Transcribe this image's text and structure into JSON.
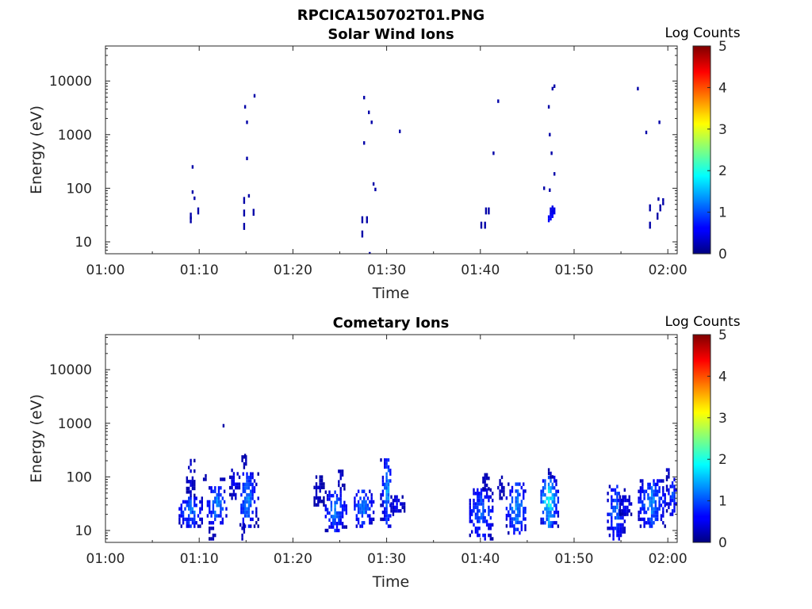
{
  "figure_title": "RPCICA150702T01.PNG",
  "chart_data": [
    {
      "type": "heatmap",
      "title": "Solar Wind Ions",
      "xlabel": "Time",
      "ylabel": "Energy (eV)",
      "x_ticks": [
        "01:00",
        "01:10",
        "01:20",
        "01:30",
        "01:40",
        "01:50",
        "02:00"
      ],
      "x_range_minutes": [
        60,
        121
      ],
      "y_scale": "log",
      "y_ticks": [
        "10",
        "100",
        "1000",
        "10000"
      ],
      "y_range": [
        6,
        45000
      ],
      "colorbar": {
        "label": "Log Counts",
        "ticks": [
          "0",
          "1",
          "2",
          "3",
          "4",
          "5"
        ],
        "range": [
          0,
          5
        ]
      },
      "cells": [
        {
          "t": 69.0,
          "e": 28,
          "v": 0.2
        },
        {
          "t": 69.0,
          "e": 24,
          "v": 0.2
        },
        {
          "t": 69.2,
          "e": 250,
          "v": 0.2
        },
        {
          "t": 69.2,
          "e": 85,
          "v": 0.2
        },
        {
          "t": 69.4,
          "e": 65,
          "v": 0.2
        },
        {
          "t": 69.8,
          "e": 35,
          "v": 0.2
        },
        {
          "t": 74.8,
          "e": 3300,
          "v": 0.2
        },
        {
          "t": 75.0,
          "e": 1700,
          "v": 0.2
        },
        {
          "t": 75.0,
          "e": 360,
          "v": 0.2
        },
        {
          "t": 74.7,
          "e": 55,
          "v": 0.2
        },
        {
          "t": 74.7,
          "e": 32,
          "v": 0.2
        },
        {
          "t": 74.7,
          "e": 18,
          "v": 0.2
        },
        {
          "t": 75.2,
          "e": 72,
          "v": 0.2
        },
        {
          "t": 75.7,
          "e": 33,
          "v": 0.2
        },
        {
          "t": 75.8,
          "e": 5300,
          "v": 0.2
        },
        {
          "t": 77.5,
          "e": 0,
          "v": 0
        },
        {
          "t": 87.5,
          "e": 4900,
          "v": 0.2
        },
        {
          "t": 87.5,
          "e": 700,
          "v": 0.2
        },
        {
          "t": 88.0,
          "e": 2600,
          "v": 0.2
        },
        {
          "t": 88.3,
          "e": 1700,
          "v": 0.2
        },
        {
          "t": 88.5,
          "e": 120,
          "v": 0.2
        },
        {
          "t": 88.7,
          "e": 95,
          "v": 0.2
        },
        {
          "t": 87.3,
          "e": 24,
          "v": 0.2
        },
        {
          "t": 87.3,
          "e": 13,
          "v": 0.2
        },
        {
          "t": 87.8,
          "e": 24,
          "v": 0.2
        },
        {
          "t": 88.1,
          "e": 6,
          "v": 0.2
        },
        {
          "t": 91.3,
          "e": 1150,
          "v": 0.2
        },
        {
          "t": 100.0,
          "e": 19,
          "v": 0.2
        },
        {
          "t": 100.4,
          "e": 19,
          "v": 0.2
        },
        {
          "t": 100.5,
          "e": 35,
          "v": 0.2
        },
        {
          "t": 100.8,
          "e": 35,
          "v": 0.2
        },
        {
          "t": 101.3,
          "e": 450,
          "v": 0.2
        },
        {
          "t": 101.8,
          "e": 4200,
          "v": 0.2
        },
        {
          "t": 106.7,
          "e": 100,
          "v": 0.2
        },
        {
          "t": 107.2,
          "e": 3300,
          "v": 0.2
        },
        {
          "t": 107.3,
          "e": 1000,
          "v": 0.2
        },
        {
          "t": 107.3,
          "e": 92,
          "v": 0.2
        },
        {
          "t": 107.5,
          "e": 450,
          "v": 0.2
        },
        {
          "t": 107.6,
          "e": 7200,
          "v": 0.2
        },
        {
          "t": 107.8,
          "e": 8000,
          "v": 0.2
        },
        {
          "t": 107.8,
          "e": 185,
          "v": 0.2
        },
        {
          "t": 107.2,
          "e": 25,
          "v": 0.6
        },
        {
          "t": 107.4,
          "e": 27,
          "v": 0.6
        },
        {
          "t": 107.6,
          "e": 30,
          "v": 0.6
        },
        {
          "t": 107.8,
          "e": 35,
          "v": 0.5
        },
        {
          "t": 107.4,
          "e": 35,
          "v": 0.5
        },
        {
          "t": 107.6,
          "e": 38,
          "v": 0.5
        },
        {
          "t": 116.7,
          "e": 7200,
          "v": 0.2
        },
        {
          "t": 117.6,
          "e": 1100,
          "v": 0.2
        },
        {
          "t": 118.0,
          "e": 19,
          "v": 0.2
        },
        {
          "t": 118.0,
          "e": 40,
          "v": 0.2
        },
        {
          "t": 118.8,
          "e": 28,
          "v": 0.2
        },
        {
          "t": 118.9,
          "e": 63,
          "v": 0.2
        },
        {
          "t": 119.0,
          "e": 1700,
          "v": 0.2
        },
        {
          "t": 119.1,
          "e": 40,
          "v": 0.2
        },
        {
          "t": 119.4,
          "e": 52,
          "v": 0.2
        }
      ]
    },
    {
      "type": "heatmap",
      "title": "Cometary Ions",
      "xlabel": "Time",
      "ylabel": "Energy (eV)",
      "x_ticks": [
        "01:00",
        "01:10",
        "01:20",
        "01:30",
        "01:40",
        "01:50",
        "02:00"
      ],
      "x_range_minutes": [
        60,
        121
      ],
      "y_scale": "log",
      "y_ticks": [
        "10",
        "100",
        "1000",
        "10000"
      ],
      "y_range": [
        6,
        45000
      ],
      "colorbar": {
        "label": "Log Counts",
        "ticks": [
          "0",
          "1",
          "2",
          "3",
          "4",
          "5"
        ],
        "range": [
          0,
          5
        ]
      },
      "clusters": [
        {
          "t0": 67.8,
          "t1": 70.2,
          "emin": 12,
          "emax": 45,
          "vmax": 1.4,
          "peak": 69.0,
          "seed": 11
        },
        {
          "t0": 68.6,
          "t1": 69.4,
          "emin": 45,
          "emax": 230,
          "vmax": 0.4,
          "peak": 69.0,
          "seed": 12
        },
        {
          "t0": 70.2,
          "t1": 70.6,
          "emin": 90,
          "emax": 110,
          "vmax": 0.2,
          "peak": 70.4,
          "seed": 13
        },
        {
          "t0": 70.8,
          "t1": 72.8,
          "emin": 12,
          "emax": 70,
          "vmax": 1.6,
          "peak": 71.8,
          "seed": 14
        },
        {
          "t0": 71.0,
          "t1": 71.6,
          "emin": 7,
          "emax": 12,
          "vmax": 0.4,
          "peak": 71.3,
          "seed": 15
        },
        {
          "t0": 72.2,
          "t1": 72.6,
          "emin": 90,
          "emax": 100,
          "vmax": 0.2,
          "peak": 72.4,
          "seed": 16
        },
        {
          "t0": 73.2,
          "t1": 74.2,
          "emin": 40,
          "emax": 150,
          "vmax": 0.6,
          "peak": 73.7,
          "seed": 17
        },
        {
          "t0": 74.4,
          "t1": 76.2,
          "emin": 12,
          "emax": 130,
          "vmax": 1.5,
          "peak": 75.0,
          "seed": 18
        },
        {
          "t0": 74.3,
          "t1": 74.7,
          "emin": 7,
          "emax": 14,
          "vmax": 0.3,
          "peak": 74.5,
          "seed": 19
        },
        {
          "t0": 74.5,
          "t1": 75.2,
          "emin": 150,
          "emax": 250,
          "vmax": 0.2,
          "peak": 74.8,
          "seed": 20
        },
        {
          "t0": 82.2,
          "t1": 83.2,
          "emin": 30,
          "emax": 100,
          "vmax": 0.3,
          "peak": 82.6,
          "seed": 21
        },
        {
          "t0": 83.4,
          "t1": 85.6,
          "emin": 10,
          "emax": 60,
          "vmax": 1.4,
          "peak": 84.4,
          "seed": 22
        },
        {
          "t0": 84.6,
          "t1": 85.4,
          "emin": 60,
          "emax": 160,
          "vmax": 0.3,
          "peak": 85.0,
          "seed": 23
        },
        {
          "t0": 86.5,
          "t1": 88.6,
          "emin": 12,
          "emax": 60,
          "vmax": 1.5,
          "peak": 87.4,
          "seed": 24
        },
        {
          "t0": 89.3,
          "t1": 90.3,
          "emin": 12,
          "emax": 240,
          "vmax": 1.6,
          "peak": 90.0,
          "seed": 25
        },
        {
          "t0": 90.4,
          "t1": 91.8,
          "emin": 20,
          "emax": 45,
          "vmax": 0.6,
          "peak": 91.0,
          "seed": 26
        },
        {
          "t0": 98.8,
          "t1": 101.3,
          "emin": 7,
          "emax": 60,
          "vmax": 1.3,
          "peak": 100.0,
          "seed": 27
        },
        {
          "t0": 100.2,
          "t1": 100.8,
          "emin": 60,
          "emax": 120,
          "vmax": 0.3,
          "peak": 100.5,
          "seed": 28
        },
        {
          "t0": 101.8,
          "t1": 102.4,
          "emin": 40,
          "emax": 100,
          "vmax": 0.3,
          "peak": 102.1,
          "seed": 29
        },
        {
          "t0": 102.7,
          "t1": 104.8,
          "emin": 9,
          "emax": 80,
          "vmax": 1.6,
          "peak": 103.8,
          "seed": 30
        },
        {
          "t0": 106.4,
          "t1": 108.2,
          "emin": 12,
          "emax": 100,
          "vmax": 2.3,
          "peak": 107.2,
          "seed": 31
        },
        {
          "t0": 107.2,
          "t1": 107.8,
          "emin": 100,
          "emax": 140,
          "vmax": 0.3,
          "peak": 107.5,
          "seed": 32
        },
        {
          "t0": 113.5,
          "t1": 115.3,
          "emin": 7,
          "emax": 70,
          "vmax": 1.4,
          "peak": 114.4,
          "seed": 33
        },
        {
          "t0": 114.8,
          "t1": 116.0,
          "emin": 20,
          "emax": 45,
          "vmax": 0.6,
          "peak": 115.4,
          "seed": 34
        },
        {
          "t0": 116.8,
          "t1": 119.6,
          "emin": 12,
          "emax": 90,
          "vmax": 1.5,
          "peak": 118.2,
          "seed": 35
        },
        {
          "t0": 119.8,
          "t1": 121.0,
          "emin": 20,
          "emax": 100,
          "vmax": 1.0,
          "peak": 120.4,
          "seed": 36
        },
        {
          "t0": 119.6,
          "t1": 120.1,
          "emin": 100,
          "emax": 170,
          "vmax": 0.3,
          "peak": 119.9,
          "seed": 37
        }
      ],
      "cells": [
        {
          "t": 72.5,
          "e": 900,
          "v": 0.2
        },
        {
          "t": 74.8,
          "e": 250,
          "v": 0.2
        }
      ]
    }
  ]
}
